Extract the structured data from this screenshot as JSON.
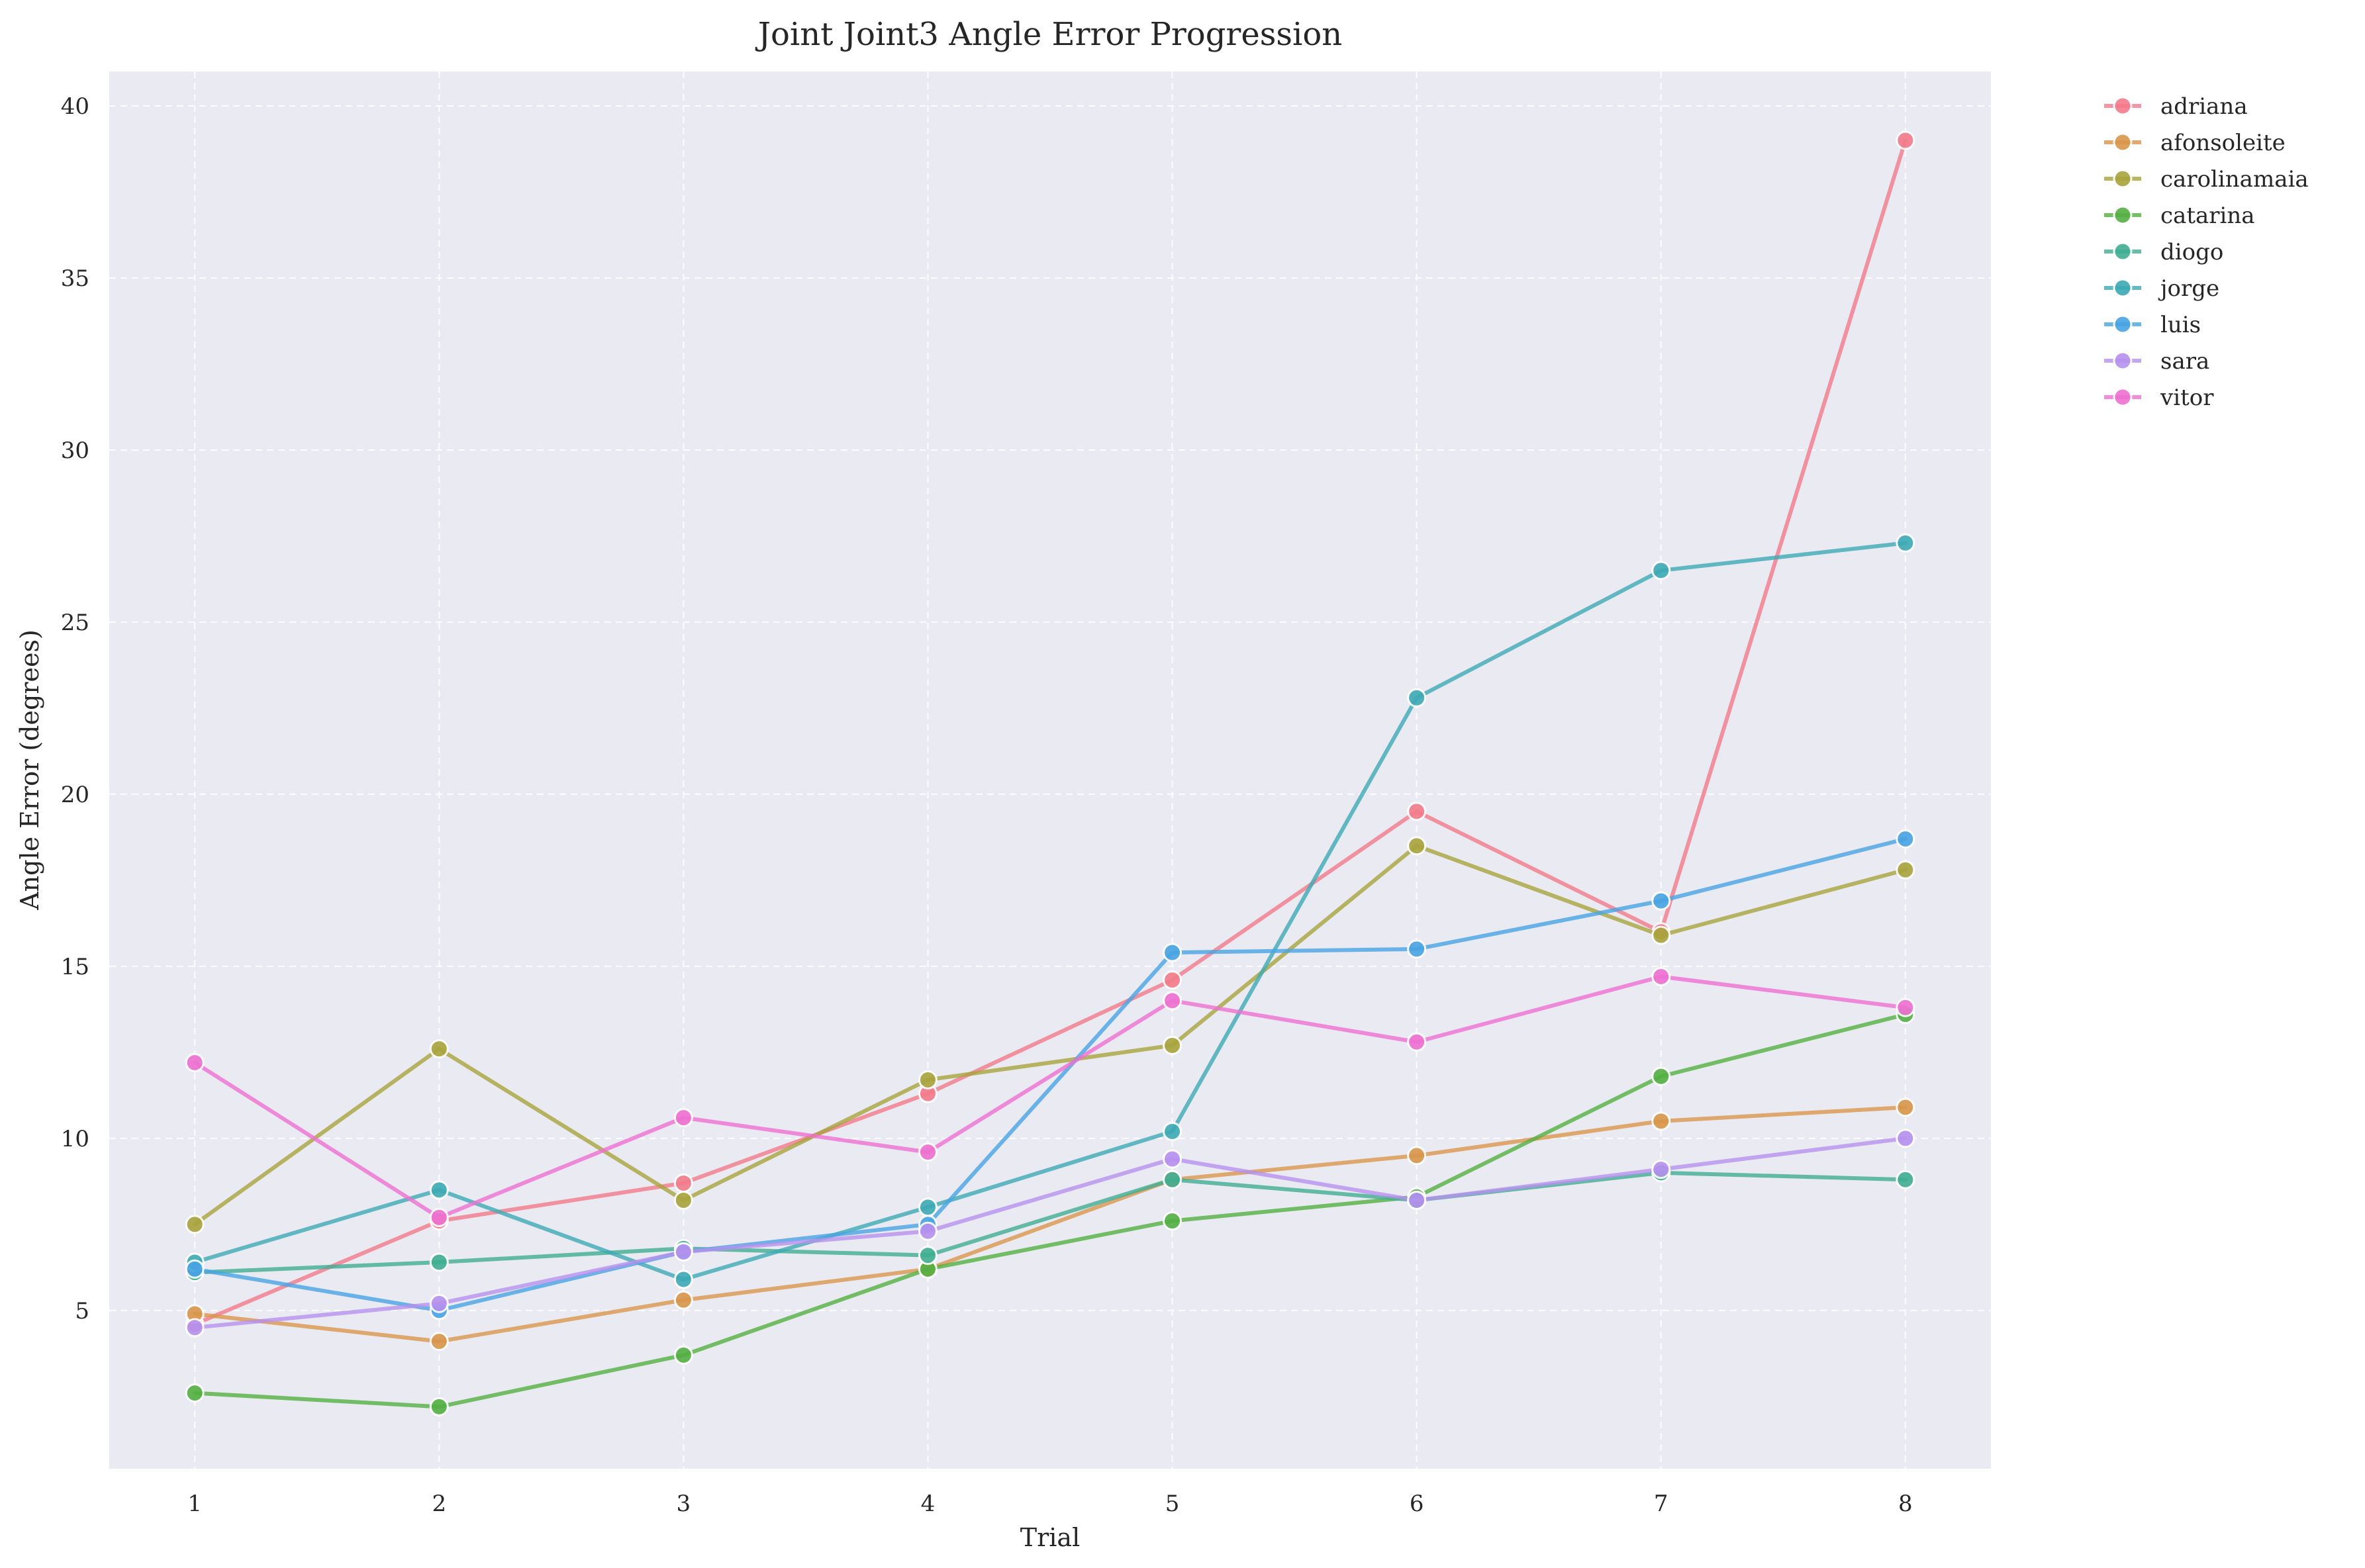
{
  "chart_data": {
    "type": "line",
    "title": "Joint Joint3 Angle Error Progression",
    "xlabel": "Trial",
    "ylabel": "Angle Error (degrees)",
    "x": [
      1,
      2,
      3,
      4,
      5,
      6,
      7,
      8
    ],
    "xlim": [
      0.65,
      8.35
    ],
    "ylim": [
      0.4,
      41.0
    ],
    "yticks": [
      5,
      10,
      15,
      20,
      25,
      30,
      35,
      40
    ],
    "grid": true,
    "legend_position": "outside-top-right",
    "series": [
      {
        "name": "adriana",
        "color": "#f37b8a",
        "values": [
          4.6,
          7.6,
          8.7,
          11.3,
          14.6,
          19.5,
          16.0,
          39.0
        ]
      },
      {
        "name": "afonsoleite",
        "color": "#d9964b",
        "values": [
          4.9,
          4.1,
          5.3,
          6.2,
          8.8,
          9.5,
          10.5,
          10.9
        ]
      },
      {
        "name": "carolinamaia",
        "color": "#a8a43c",
        "values": [
          7.5,
          12.6,
          8.2,
          11.7,
          12.7,
          18.5,
          15.9,
          17.8
        ]
      },
      {
        "name": "catarina",
        "color": "#54b042",
        "values": [
          2.6,
          2.2,
          3.7,
          6.2,
          7.6,
          8.3,
          11.8,
          13.6
        ]
      },
      {
        "name": "diogo",
        "color": "#40ae92",
        "values": [
          6.1,
          6.4,
          6.8,
          6.6,
          8.8,
          8.2,
          9.0,
          8.8
        ]
      },
      {
        "name": "jorge",
        "color": "#3daab4",
        "values": [
          6.4,
          8.5,
          5.9,
          8.0,
          10.2,
          22.8,
          26.5,
          27.3
        ]
      },
      {
        "name": "luis",
        "color": "#48a4e3",
        "values": [
          6.2,
          5.0,
          6.7,
          7.5,
          15.4,
          15.5,
          16.9,
          18.7
        ]
      },
      {
        "name": "sara",
        "color": "#b691ee",
        "values": [
          4.5,
          5.2,
          6.7,
          7.3,
          9.4,
          8.2,
          9.1,
          10.0
        ]
      },
      {
        "name": "vitor",
        "color": "#ee70d1",
        "values": [
          12.2,
          7.7,
          10.6,
          9.6,
          14.0,
          12.8,
          14.7,
          13.8
        ]
      }
    ]
  }
}
